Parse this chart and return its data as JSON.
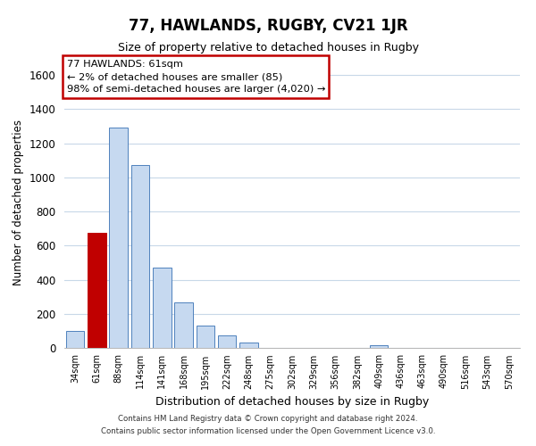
{
  "title": "77, HAWLANDS, RUGBY, CV21 1JR",
  "subtitle": "Size of property relative to detached houses in Rugby",
  "xlabel": "Distribution of detached houses by size in Rugby",
  "ylabel": "Number of detached properties",
  "categories": [
    "34sqm",
    "61sqm",
    "88sqm",
    "114sqm",
    "141sqm",
    "168sqm",
    "195sqm",
    "222sqm",
    "248sqm",
    "275sqm",
    "302sqm",
    "329sqm",
    "356sqm",
    "382sqm",
    "409sqm",
    "436sqm",
    "463sqm",
    "490sqm",
    "516sqm",
    "543sqm",
    "570sqm"
  ],
  "values": [
    100,
    675,
    1290,
    1070,
    470,
    265,
    130,
    75,
    30,
    0,
    0,
    0,
    0,
    0,
    15,
    0,
    0,
    0,
    0,
    0,
    0
  ],
  "bar_color": "#c6d9f0",
  "bar_edge_color": "#4f81bd",
  "highlight_bar_index": 1,
  "highlight_bar_color": "#c00000",
  "annotation_text_line1": "77 HAWLANDS: 61sqm",
  "annotation_text_line2": "← 2% of detached houses are smaller (85)",
  "annotation_text_line3": "98% of semi-detached houses are larger (4,020) →",
  "ylim": [
    0,
    1700
  ],
  "yticks": [
    0,
    200,
    400,
    600,
    800,
    1000,
    1200,
    1400,
    1600
  ],
  "footer_line1": "Contains HM Land Registry data © Crown copyright and database right 2024.",
  "footer_line2": "Contains public sector information licensed under the Open Government Licence v3.0.",
  "background_color": "#ffffff",
  "grid_color": "#c8d8e8"
}
